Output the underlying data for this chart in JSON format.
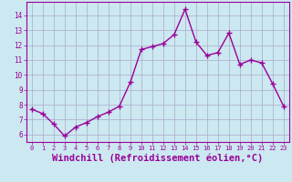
{
  "x": [
    0,
    1,
    2,
    3,
    4,
    5,
    6,
    7,
    8,
    9,
    10,
    11,
    12,
    13,
    14,
    15,
    16,
    17,
    18,
    19,
    20,
    21,
    22,
    23
  ],
  "y": [
    7.7,
    7.4,
    6.7,
    5.9,
    6.5,
    6.8,
    7.2,
    7.5,
    7.9,
    9.5,
    11.7,
    11.9,
    12.1,
    12.7,
    14.4,
    12.2,
    11.3,
    11.5,
    12.8,
    10.7,
    11.0,
    10.8,
    9.4,
    7.9
  ],
  "line_color": "#990099",
  "marker": "+",
  "marker_size": 4,
  "xlabel": "Windchill (Refroidissement éolien,°C)",
  "xlabel_fontsize": 7.5,
  "ylim": [
    5.5,
    14.9
  ],
  "xlim": [
    -0.5,
    23.5
  ],
  "yticks": [
    6,
    7,
    8,
    9,
    10,
    11,
    12,
    13,
    14
  ],
  "xticks": [
    0,
    1,
    2,
    3,
    4,
    5,
    6,
    7,
    8,
    9,
    10,
    11,
    12,
    13,
    14,
    15,
    16,
    17,
    18,
    19,
    20,
    21,
    22,
    23
  ],
  "background_color": "#cce8f0",
  "grid_color": "#aaaacc",
  "tick_color": "#990099",
  "label_color": "#990099",
  "line_width": 1.0
}
